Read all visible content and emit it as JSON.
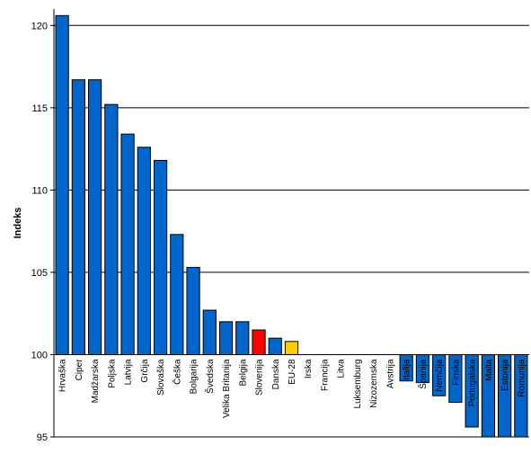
{
  "chart_data": {
    "type": "bar",
    "title": "",
    "xlabel": "",
    "ylabel": "Indeks",
    "ylim": [
      95,
      121
    ],
    "yticks": [
      95,
      100,
      105,
      110,
      115,
      120
    ],
    "baseline": 100,
    "grid": true,
    "categories": [
      "Hrvaška",
      "Ciper",
      "Madžarska",
      "Poljska",
      "Latvija",
      "Grčija",
      "Slovaška",
      "Češka",
      "Bolgarija",
      "Švedska",
      "Velika Britanija",
      "Belgija",
      "Slovenija",
      "Danska",
      "EU-28",
      "Irska",
      "Francija",
      "Litva",
      "Luksemburg",
      "Nizozemska",
      "Avstrija",
      "Italija",
      "Španija",
      "Nemčija",
      "Finska",
      "Portugalska",
      "Malta",
      "Estonija",
      "Romunija"
    ],
    "values": [
      120.6,
      116.7,
      116.7,
      115.2,
      113.4,
      112.6,
      111.8,
      107.3,
      105.3,
      102.7,
      102.0,
      102.0,
      101.5,
      101.0,
      100.8,
      100.0,
      100.0,
      100.0,
      100.0,
      100.0,
      100.0,
      98.4,
      98.3,
      97.5,
      97.1,
      95.6,
      94.8,
      94.7,
      94.7
    ],
    "colors": {
      "default": "#0066cc",
      "highlight": "#ff0000",
      "eu": "#ffcc00",
      "border": "#000000",
      "grid": "#000000"
    },
    "highlight_categories": {
      "Slovenija": "highlight",
      "EU-28": "eu"
    }
  }
}
